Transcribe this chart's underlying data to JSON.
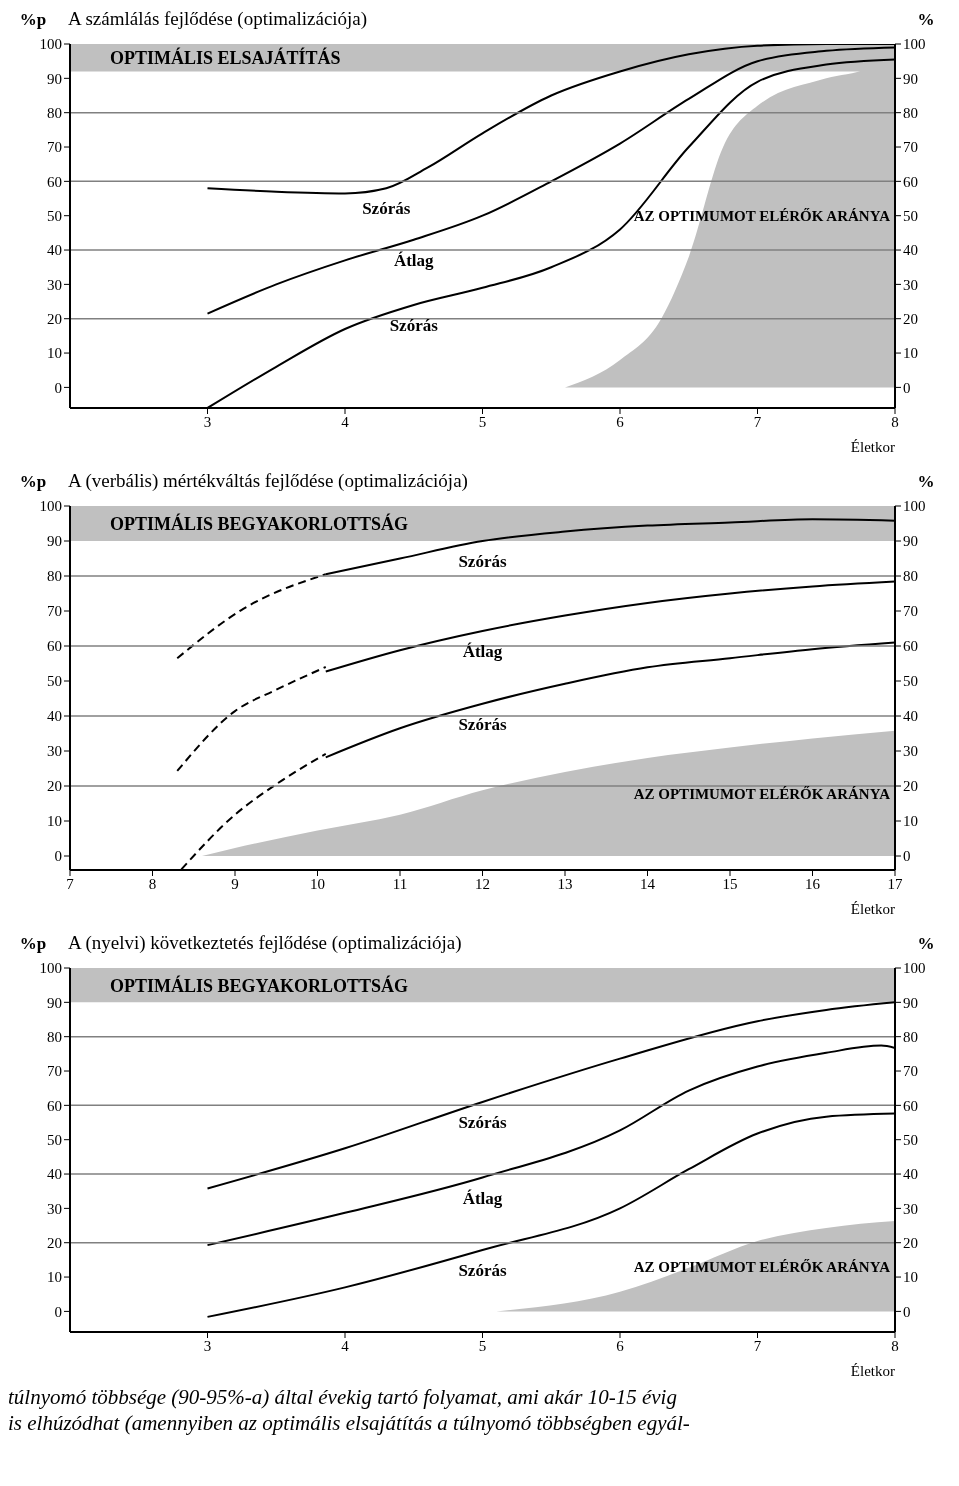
{
  "chart_data": [
    {
      "type": "line",
      "title": "A számlálás fejlődése (optimalizációja)",
      "ylabel": "%p",
      "y2label": "%",
      "xlabel": "Életkor",
      "xlim": [
        2,
        8
      ],
      "xticks": [
        3,
        4,
        5,
        6,
        7,
        8
      ],
      "ylim": [
        -6,
        100
      ],
      "yticks": [
        0,
        10,
        20,
        30,
        40,
        50,
        60,
        70,
        80,
        90,
        100
      ],
      "y2lim": [
        -6,
        100
      ],
      "y2ticks": [
        0,
        10,
        20,
        30,
        40,
        50,
        60,
        70,
        80,
        90,
        100
      ],
      "bands": [
        {
          "axis": "y",
          "from": 92,
          "to": 100,
          "label": "OPTIMÁLIS ELSAJÁTÍTÁS",
          "color": "#c0c0c0"
        }
      ],
      "ref_lines": [
        {
          "axis": "y",
          "value": 20,
          "color": "#808080"
        },
        {
          "axis": "y",
          "value": 40,
          "color": "#808080"
        },
        {
          "axis": "y",
          "value": 60,
          "color": "#808080"
        },
        {
          "axis": "y",
          "value": 80,
          "color": "#808080"
        }
      ],
      "series": [
        {
          "name": "AZ OPTIMUMOT ELÉRŐK ARÁNYA",
          "type": "area",
          "color": "#c0c0c0",
          "x": [
            5.6,
            6,
            6.3,
            6.5,
            6.75,
            7,
            7.5,
            7.8,
            8
          ],
          "values": [
            0,
            8,
            20,
            38,
            70,
            82,
            90,
            93,
            100
          ]
        },
        {
          "name": "Szórás",
          "color": "#000000",
          "x": [
            3,
            3.5,
            4,
            4.3,
            4.6,
            5,
            5.5,
            6,
            6.5,
            7,
            7.5,
            8
          ],
          "values": [
            58,
            57,
            56.5,
            58,
            64,
            74,
            85,
            92,
            97,
            99.5,
            100,
            100
          ]
        },
        {
          "name": "Átlag",
          "color": "#000000",
          "x": [
            3,
            3.5,
            4,
            4.5,
            5,
            5.5,
            6,
            6.5,
            7,
            7.5,
            8
          ],
          "values": [
            21.5,
            30,
            37,
            43,
            50,
            60,
            71,
            84,
            95,
            98,
            99
          ]
        },
        {
          "name": "Szórás",
          "color": "#000000",
          "x": [
            3,
            3.5,
            4,
            4.5,
            5,
            5.5,
            6,
            6.5,
            7,
            7.5,
            8
          ],
          "values": [
            -6,
            6,
            17,
            24,
            29,
            35,
            46,
            70,
            89,
            94,
            95.5
          ]
        }
      ]
    },
    {
      "type": "line",
      "title": "A (verbális) mértékváltás fejlődése (optimalizációja)",
      "ylabel": "%p",
      "y2label": "%",
      "xlabel": "Életkor",
      "xlim": [
        7,
        17
      ],
      "xticks": [
        7,
        8,
        9,
        10,
        11,
        12,
        13,
        14,
        15,
        16,
        17
      ],
      "ylim": [
        -4,
        100
      ],
      "yticks": [
        0,
        10,
        20,
        30,
        40,
        50,
        60,
        70,
        80,
        90,
        100
      ],
      "y2lim": [
        -4,
        100
      ],
      "y2ticks": [
        0,
        10,
        20,
        30,
        40,
        50,
        60,
        70,
        80,
        90,
        100
      ],
      "bands": [
        {
          "axis": "y",
          "from": 90,
          "to": 100,
          "label": "OPTIMÁLIS  BEGYAKORLOTTSÁG",
          "color": "#c0c0c0"
        }
      ],
      "ref_lines": [
        {
          "axis": "y",
          "value": 20,
          "color": "#808080"
        },
        {
          "axis": "y",
          "value": 40,
          "color": "#808080"
        },
        {
          "axis": "y",
          "value": 60,
          "color": "#808080"
        },
        {
          "axis": "y",
          "value": 80,
          "color": "#808080"
        }
      ],
      "series": [
        {
          "name": "AZ OPTIMUMOT ELÉRŐK ARÁNYA",
          "type": "area",
          "color": "#c0c0c0",
          "x": [
            8.6,
            9,
            10,
            11,
            12,
            13,
            14,
            15,
            16,
            17
          ],
          "values": [
            0,
            2.3,
            7.3,
            11.8,
            18.8,
            24,
            28,
            31,
            33.6,
            35.8
          ]
        },
        {
          "color": "#000000",
          "line_style": "dashed",
          "x": [
            8.3,
            9.1,
            10.1
          ],
          "values": [
            56.5,
            70.6,
            80.5
          ]
        },
        {
          "name": "Szórás",
          "color": "#000000",
          "x": [
            10.1,
            11,
            12,
            13,
            14,
            15,
            16,
            17
          ],
          "values": [
            80.5,
            85,
            90,
            92.7,
            94.4,
            95.3,
            96.2,
            95.8
          ]
        },
        {
          "color": "#000000",
          "line_style": "dashed",
          "x": [
            8.3,
            9,
            9.5,
            10.1
          ],
          "values": [
            24.3,
            41.4,
            47.5,
            54
          ]
        },
        {
          "name": "Átlag",
          "color": "#000000",
          "x": [
            10.1,
            11,
            12,
            13,
            14,
            15,
            16,
            17
          ],
          "values": [
            52.7,
            58.8,
            64.3,
            68.7,
            72.3,
            75,
            77,
            78.4
          ]
        },
        {
          "color": "#000000",
          "line_style": "dashed",
          "x": [
            8.35,
            9,
            9.5,
            10.1
          ],
          "values": [
            -3.8,
            11.8,
            20.5,
            29.2
          ]
        },
        {
          "name": "Szórás",
          "color": "#000000",
          "x": [
            10.1,
            11,
            12,
            13,
            14,
            15,
            16,
            17
          ],
          "values": [
            28.2,
            36.5,
            43.5,
            49.2,
            53.9,
            56.5,
            59.1,
            61
          ]
        }
      ]
    },
    {
      "type": "line",
      "title": "A (nyelvi) következtetés fejlődése (optimalizációja)",
      "ylabel": "%p",
      "y2label": "%",
      "xlabel": "Életkor",
      "xlim": [
        2,
        8
      ],
      "xticks": [
        3,
        4,
        5,
        6,
        7,
        8
      ],
      "ylim": [
        -6,
        100
      ],
      "yticks": [
        0,
        10,
        20,
        30,
        40,
        50,
        60,
        70,
        80,
        90,
        100
      ],
      "y2lim": [
        -6,
        100
      ],
      "y2ticks": [
        0,
        10,
        20,
        30,
        40,
        50,
        60,
        70,
        80,
        90,
        100
      ],
      "bands": [
        {
          "axis": "y",
          "from": 90,
          "to": 100,
          "label": "OPTIMÁLIS  BEGYAKORLOTTSÁG",
          "color": "#c0c0c0"
        }
      ],
      "ref_lines": [
        {
          "axis": "y",
          "value": 20,
          "color": "#808080"
        },
        {
          "axis": "y",
          "value": 40,
          "color": "#808080"
        },
        {
          "axis": "y",
          "value": 60,
          "color": "#808080"
        },
        {
          "axis": "y",
          "value": 80,
          "color": "#808080"
        }
      ],
      "series": [
        {
          "name": "AZ OPTIMUMOT ELÉRŐK ARÁNYA",
          "type": "area",
          "color": "#c0c0c0",
          "x": [
            5.1,
            6,
            6.5,
            7,
            7.5,
            8
          ],
          "values": [
            0,
            5.7,
            12.7,
            20.5,
            24.3,
            26.3
          ]
        },
        {
          "name": "Szórás",
          "color": "#000000",
          "x": [
            3,
            4,
            5,
            6,
            7,
            7.5,
            8
          ],
          "values": [
            35.8,
            47.5,
            61,
            73.6,
            84.5,
            87.8,
            90
          ]
        },
        {
          "name": "Átlag",
          "color": "#000000",
          "x": [
            3,
            4,
            5,
            6,
            6.5,
            7,
            7.5,
            7.9,
            8
          ],
          "values": [
            19.3,
            28.7,
            39,
            52.7,
            64.3,
            71.3,
            75.3,
            77.4,
            76.7
          ]
        },
        {
          "name": "Szórás",
          "color": "#000000",
          "x": [
            3,
            4,
            5,
            6,
            6.5,
            7,
            7.5,
            8
          ],
          "values": [
            -1.6,
            7,
            17.9,
            30,
            41.4,
            51.8,
            56.7,
            57.6
          ]
        }
      ],
      "annotations": [
        "túlnyomó többsége (90-95%-a) által évekig tartó folyamat, ami akár 10-15 évig",
        "is elhúzódhat (amennyiben az optimális elsajátítás a túlnyomó többségben egyál-"
      ]
    }
  ]
}
